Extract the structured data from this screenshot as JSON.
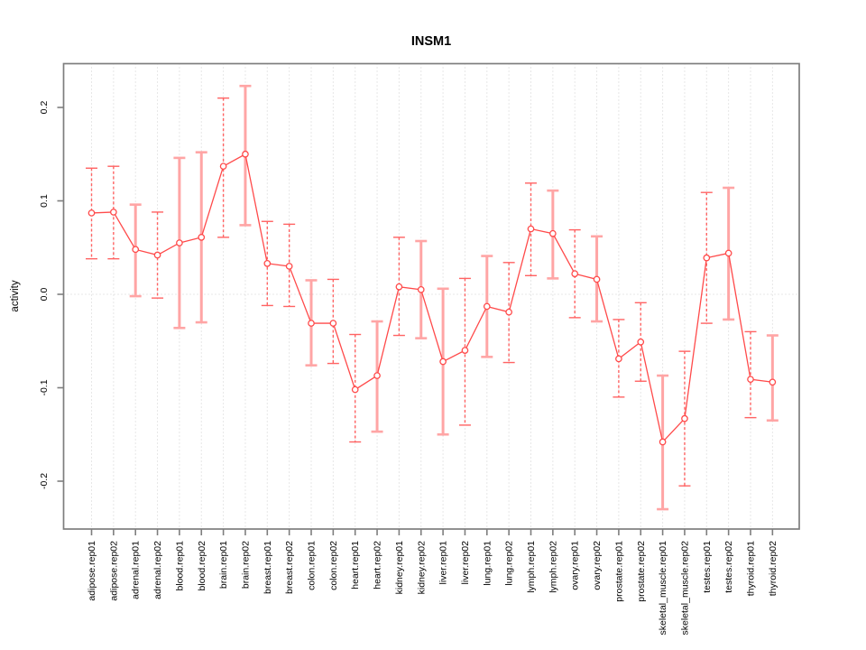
{
  "figure": {
    "title": "INSM1",
    "ylabel": "activity"
  },
  "chart_data": {
    "type": "line",
    "title": "INSM1",
    "xlabel": "",
    "ylabel": "activity",
    "ylim": [
      -0.25,
      0.25
    ],
    "yticks": [
      -0.2,
      -0.1,
      0.0,
      0.1,
      0.2
    ],
    "grid": {
      "vertical_dotted_per_category": true,
      "horizontal_dotted_at": 0.0
    },
    "legend_position": "none",
    "marker": "open-circle",
    "categories": [
      "adipose.rep01",
      "adipose.rep02",
      "adrenal.rep01",
      "adrenal.rep02",
      "blood.rep01",
      "blood.rep02",
      "brain.rep01",
      "brain.rep02",
      "breast.rep01",
      "breast.rep02",
      "colon.rep01",
      "colon.rep02",
      "heart.rep01",
      "heart.rep02",
      "kidney.rep01",
      "kidney.rep02",
      "liver.rep01",
      "liver.rep02",
      "lung.rep01",
      "lung.rep02",
      "lymph.rep01",
      "lymph.rep02",
      "ovary.rep01",
      "ovary.rep02",
      "prostate.rep01",
      "prostate.rep02",
      "skeletal_muscle.rep01",
      "skeletal_muscle.rep02",
      "testes.rep01",
      "testes.rep02",
      "thyroid.rep01",
      "thyroid.rep02"
    ],
    "series": [
      {
        "name": "activity",
        "values": [
          0.087,
          0.088,
          0.048,
          0.042,
          0.055,
          0.061,
          0.137,
          0.15,
          0.033,
          0.03,
          -0.031,
          -0.031,
          -0.102,
          -0.087,
          0.008,
          0.005,
          -0.072,
          -0.06,
          -0.013,
          -0.019,
          0.07,
          0.065,
          0.022,
          0.016,
          -0.069,
          -0.051,
          -0.158,
          -0.133,
          0.039,
          0.044,
          -0.091,
          -0.094
        ],
        "error_low": [
          0.038,
          0.038,
          -0.002,
          -0.004,
          -0.036,
          -0.03,
          0.061,
          0.074,
          -0.012,
          -0.013,
          -0.076,
          -0.074,
          -0.158,
          -0.147,
          -0.044,
          -0.047,
          -0.15,
          -0.14,
          -0.067,
          -0.073,
          0.02,
          0.017,
          -0.025,
          -0.029,
          -0.11,
          -0.093,
          -0.23,
          -0.205,
          -0.031,
          -0.027,
          -0.132,
          -0.135
        ],
        "error_high": [
          0.135,
          0.137,
          0.096,
          0.088,
          0.146,
          0.152,
          0.21,
          0.223,
          0.078,
          0.075,
          0.015,
          0.016,
          -0.043,
          -0.029,
          0.061,
          0.057,
          0.006,
          0.017,
          0.041,
          0.034,
          0.119,
          0.111,
          0.069,
          0.062,
          -0.027,
          -0.009,
          -0.087,
          -0.061,
          0.109,
          0.114,
          -0.04,
          -0.044
        ],
        "error_bar_styles": [
          "dashed",
          "dashed",
          "solid",
          "dashed",
          "solid",
          "solid",
          "dashed",
          "solid",
          "dashed",
          "dashed",
          "solid",
          "dashed",
          "dashed",
          "solid",
          "dashed",
          "solid",
          "solid",
          "dashed",
          "solid",
          "dashed",
          "dashed",
          "solid",
          "dashed",
          "solid",
          "dashed",
          "dashed",
          "solid",
          "dashed",
          "dashed",
          "solid",
          "dashed",
          "solid"
        ]
      }
    ],
    "colors": {
      "line": "#FF4A4A",
      "marker_stroke": "#FF4A4A",
      "marker_fill": "#FFFFFF",
      "error_bar_solid": "#FFA5A5",
      "error_bar_dashed": "#FF6363",
      "gridline": "#CFCFCF",
      "plot_border": "#7E7E7E",
      "tick": "#7E7E7E",
      "text": "#000000",
      "background": "#FFFFFF"
    }
  }
}
